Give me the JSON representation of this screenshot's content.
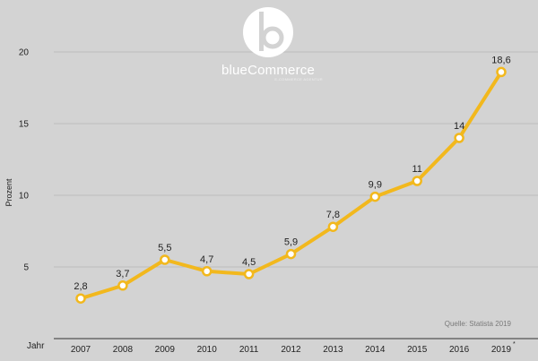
{
  "brand": {
    "name": "blueCommerce",
    "tagline": "E-COMMERCE AGENTUR"
  },
  "source": "Quelle: Statista 2019",
  "chart_data": {
    "type": "line",
    "title": "",
    "xlabel": "Jahr",
    "ylabel": "Prozent",
    "categories": [
      "2007",
      "2008",
      "2009",
      "2010",
      "2011",
      "2012",
      "2013",
      "2014",
      "2015",
      "2016",
      "2019"
    ],
    "values": [
      2.8,
      3.7,
      5.5,
      4.7,
      4.5,
      5.9,
      7.8,
      9.9,
      11,
      14,
      18.6
    ],
    "data_labels": [
      "2,8",
      "3,7",
      "5,5",
      "4,7",
      "4,5",
      "5,9",
      "7,8",
      "9,9",
      "11",
      "14",
      "18,6"
    ],
    "footnote_marker": "*",
    "footnote_category": "2019",
    "yticks": [
      5,
      10,
      15,
      20
    ],
    "ylim": [
      0,
      20
    ],
    "grid": true,
    "line_color": "#f2b81d",
    "grid_color": "#bdbdbd"
  }
}
